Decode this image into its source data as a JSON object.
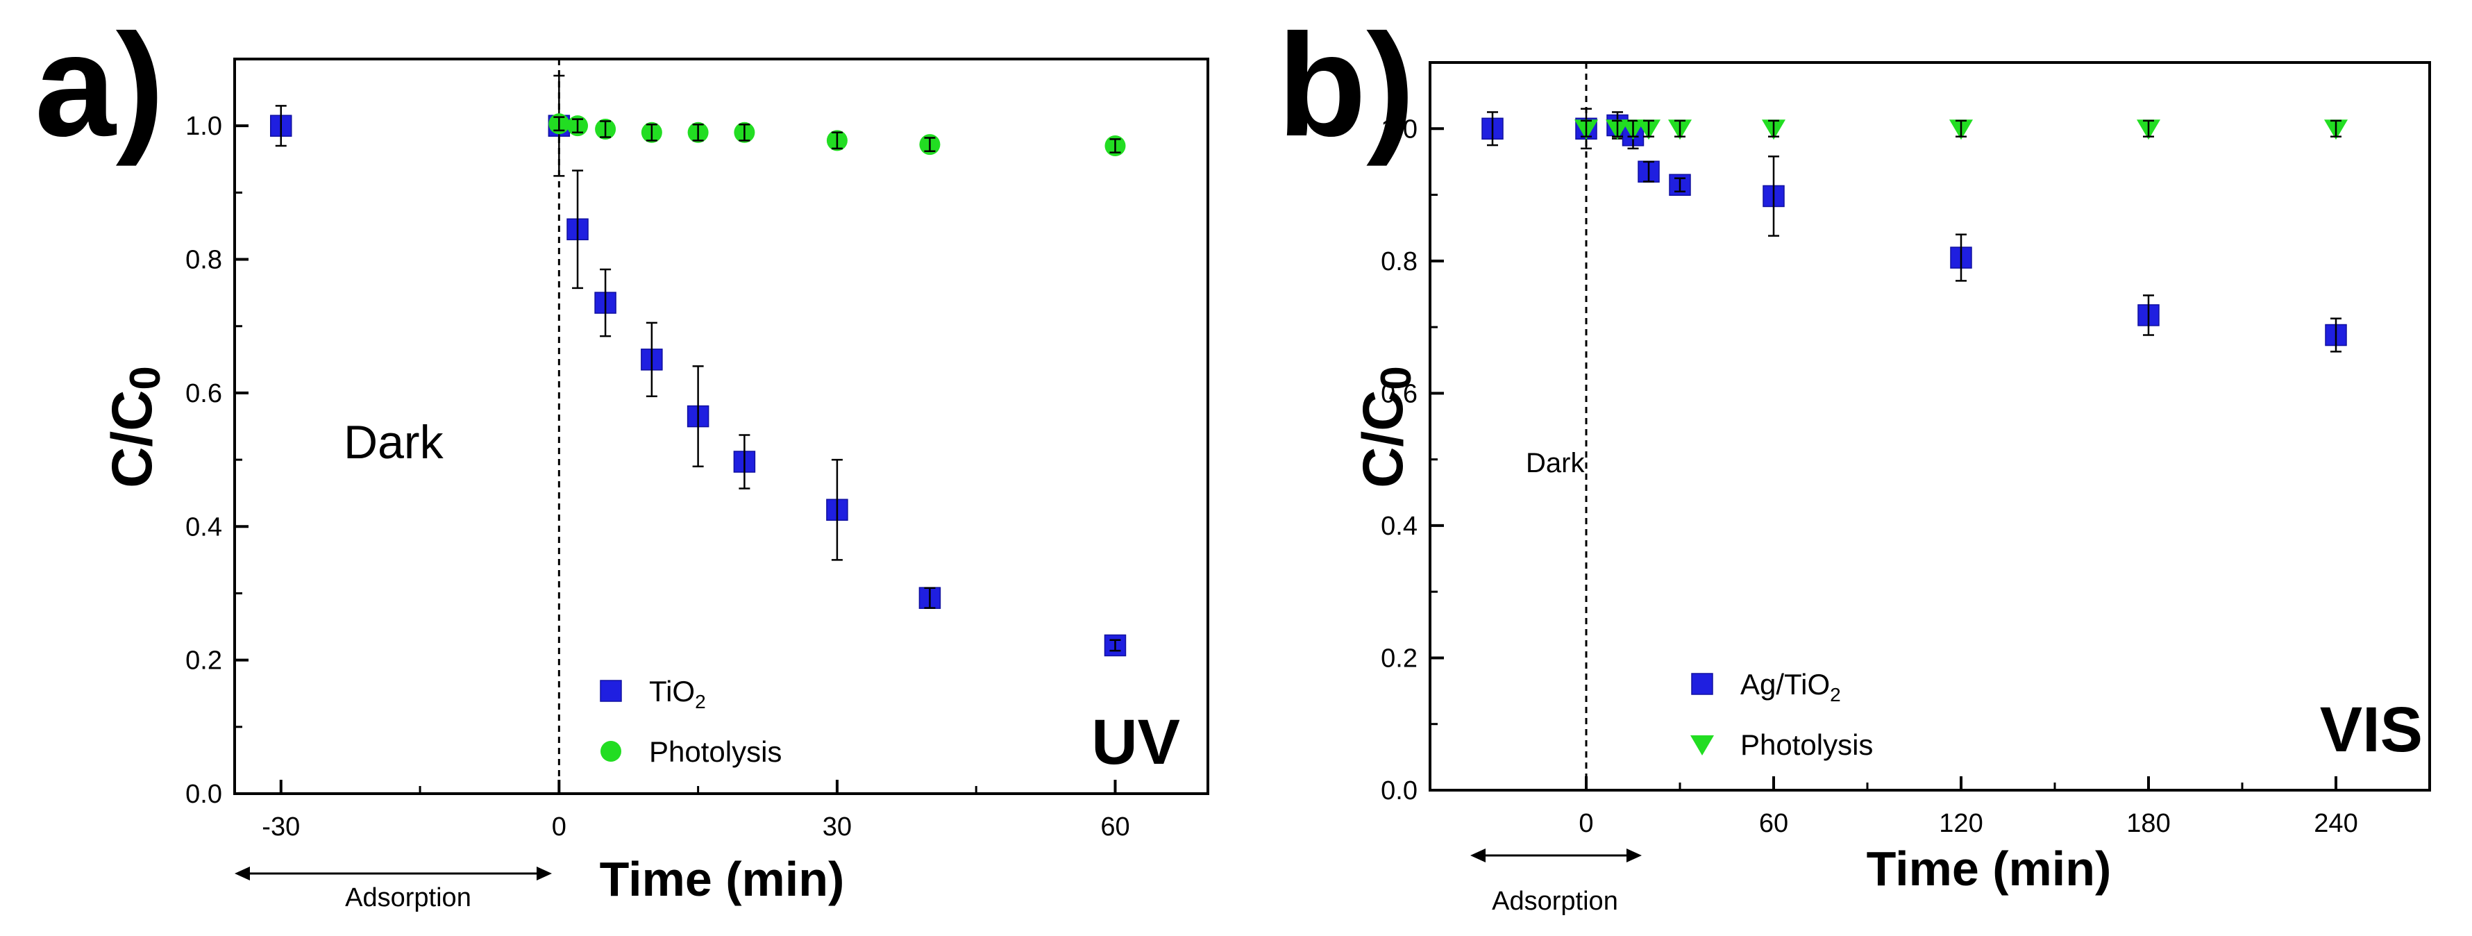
{
  "chart_data": [
    {
      "panel": "a)",
      "type": "scatter",
      "title": "",
      "xlabel": "Time (min)",
      "ylabel": "C/C0",
      "xlim": [
        -35,
        70
      ],
      "ylim": [
        0.0,
        1.1
      ],
      "xticks": [
        -30,
        0,
        30,
        60
      ],
      "yticks": [
        0.0,
        0.2,
        0.4,
        0.6,
        0.8,
        1.0
      ],
      "corner_label": "UV",
      "dark_label": "Dark",
      "adsorption_label": "Adsorption",
      "series": [
        {
          "name": "TiO2",
          "label_main": "TiO",
          "label_sub": "2",
          "marker": "square",
          "color": "#1f1fe0",
          "x": [
            -30,
            0,
            2,
            5,
            10,
            15,
            20,
            30,
            40,
            60
          ],
          "y": [
            1.0,
            1.0,
            0.845,
            0.735,
            0.65,
            0.565,
            0.497,
            0.425,
            0.293,
            0.222
          ],
          "err": [
            0.03,
            0.075,
            0.088,
            0.05,
            0.055,
            0.075,
            0.04,
            0.075,
            0.015,
            0.008
          ]
        },
        {
          "name": "Photolysis",
          "label_main": "Photolysis",
          "label_sub": "",
          "marker": "circle",
          "color": "#22dd22",
          "x": [
            0,
            2,
            5,
            10,
            15,
            20,
            30,
            40,
            60
          ],
          "y": [
            1.003,
            1.0,
            0.995,
            0.99,
            0.99,
            0.99,
            0.978,
            0.972,
            0.97
          ],
          "err": [
            0.01,
            0.01,
            0.012,
            0.012,
            0.012,
            0.012,
            0.012,
            0.01,
            0.01
          ]
        }
      ]
    },
    {
      "panel": "b)",
      "type": "scatter",
      "title": "",
      "xlabel": "Time (min)",
      "ylabel": "C/C0",
      "xlim": [
        -50,
        270
      ],
      "ylim": [
        0.0,
        1.1
      ],
      "xticks": [
        0,
        60,
        120,
        180,
        240
      ],
      "yticks": [
        0.0,
        0.2,
        0.4,
        0.6,
        0.8,
        1.0
      ],
      "corner_label": "VIS",
      "dark_label": "Dark",
      "adsorption_label": "Adsorption",
      "series": [
        {
          "name": "Ag/TiO2",
          "label_main": "Ag/TiO",
          "label_sub": "2",
          "marker": "square",
          "color": "#1f1fe0",
          "x": [
            -30,
            0,
            10,
            15,
            20,
            30,
            60,
            120,
            180,
            240
          ],
          "y": [
            1.0,
            1.0,
            1.005,
            0.99,
            0.935,
            0.915,
            0.898,
            0.805,
            0.718,
            0.688
          ],
          "err": [
            0.025,
            0.03,
            0.02,
            0.02,
            0.015,
            0.01,
            0.06,
            0.035,
            0.03,
            0.025
          ]
        },
        {
          "name": "Photolysis",
          "label_main": "Photolysis",
          "label_sub": "",
          "marker": "triangle-down",
          "color": "#22dd22",
          "x": [
            0,
            10,
            15,
            20,
            30,
            60,
            120,
            180,
            240
          ],
          "y": [
            1.0,
            1.0,
            1.0,
            1.0,
            1.0,
            1.0,
            1.0,
            1.0,
            1.0
          ],
          "err": [
            0.012,
            0.012,
            0.012,
            0.012,
            0.012,
            0.012,
            0.012,
            0.012,
            0.012
          ]
        }
      ]
    }
  ]
}
